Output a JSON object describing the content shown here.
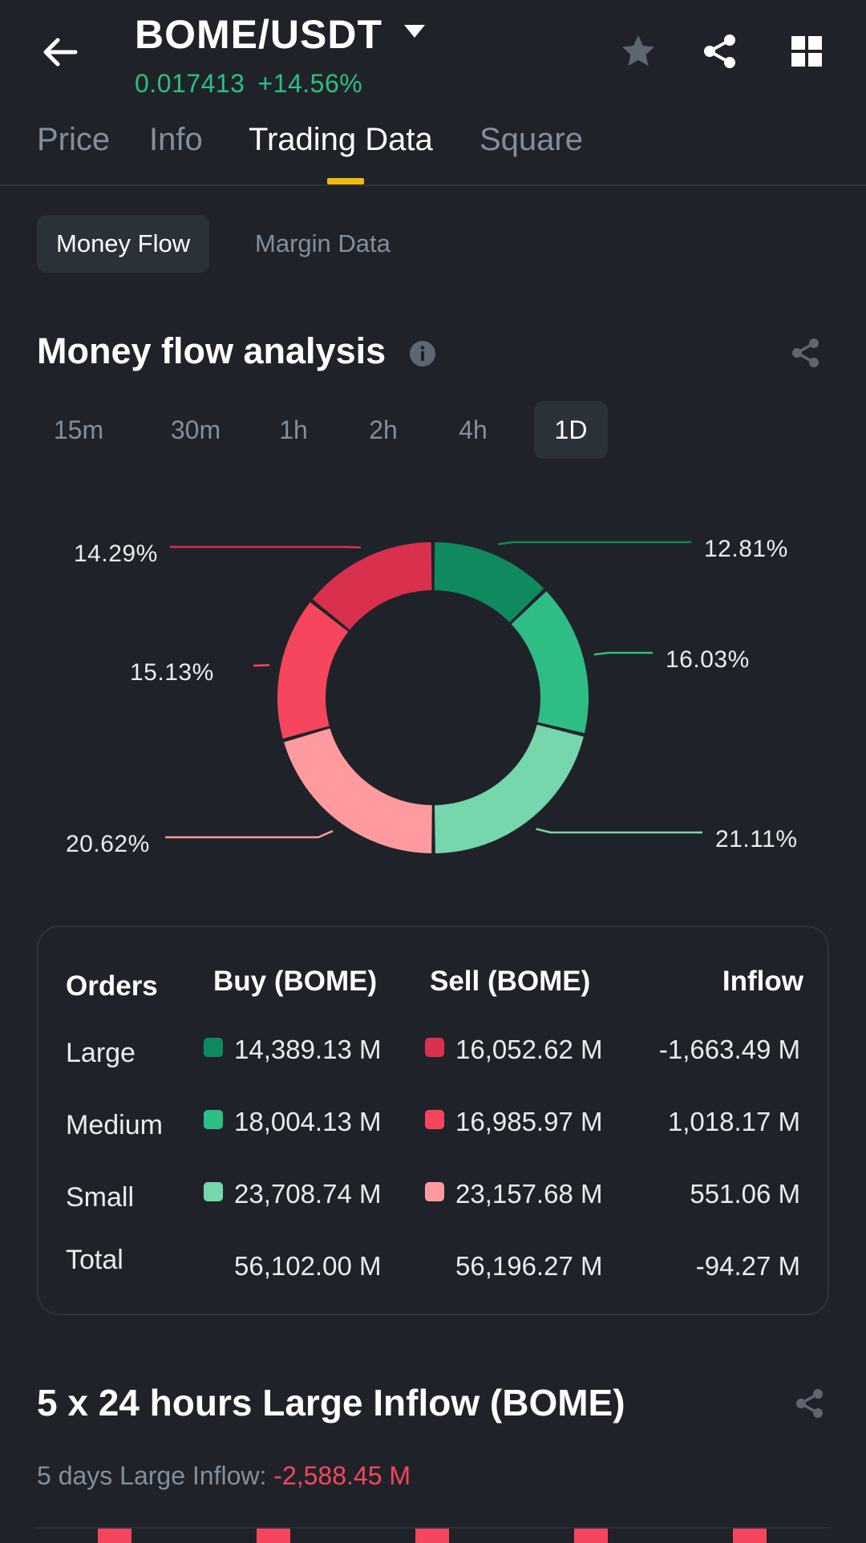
{
  "header": {
    "pair": "BOME/USDT",
    "price": "0.017413",
    "change": "+14.56%"
  },
  "tabs": [
    {
      "label": "Price"
    },
    {
      "label": "Info"
    },
    {
      "label": "Trading Data"
    },
    {
      "label": "Square"
    }
  ],
  "subtabs": [
    {
      "label": "Money Flow"
    },
    {
      "label": "Margin Data"
    }
  ],
  "money_flow": {
    "title": "Money flow analysis",
    "periods": [
      "15m",
      "30m",
      "1h",
      "2h",
      "4h",
      "1D"
    ],
    "selected_period": "1D"
  },
  "chart_data": {
    "type": "pie",
    "donut": true,
    "slices": [
      {
        "label": "Large Buy",
        "value": 12.81,
        "display": "12.81%",
        "color": "#0f8a5f"
      },
      {
        "label": "Medium Buy",
        "value": 16.03,
        "display": "16.03%",
        "color": "#2ebd85"
      },
      {
        "label": "Small Buy",
        "value": 21.11,
        "display": "21.11%",
        "color": "#76d6ac"
      },
      {
        "label": "Small Sell",
        "value": 20.62,
        "display": "20.62%",
        "color": "#ff9b9f"
      },
      {
        "label": "Medium Sell",
        "value": 15.13,
        "display": "15.13%",
        "color": "#f6465d"
      },
      {
        "label": "Large Sell",
        "value": 14.29,
        "display": "14.29%",
        "color": "#d9304e"
      }
    ]
  },
  "orders_table": {
    "headers": {
      "orders": "Orders",
      "buy": "Buy (BOME)",
      "sell": "Sell (BOME)",
      "inflow": "Inflow"
    },
    "rows": [
      {
        "label": "Large",
        "buy": "14,389.13 M",
        "sell": "16,052.62 M",
        "inflow": "-1,663.49 M",
        "buy_color": "#0f8a5f",
        "sell_color": "#d9304e"
      },
      {
        "label": "Medium",
        "buy": "18,004.13 M",
        "sell": "16,985.97 M",
        "inflow": "1,018.17 M",
        "buy_color": "#2ebd85",
        "sell_color": "#f6465d"
      },
      {
        "label": "Small",
        "buy": "23,708.74 M",
        "sell": "23,157.68 M",
        "inflow": "551.06 M",
        "buy_color": "#76d6ac",
        "sell_color": "#ff9b9f"
      },
      {
        "label": "Total",
        "buy": "56,102.00 M",
        "sell": "56,196.27 M",
        "inflow": "-94.27 M"
      }
    ]
  },
  "large_inflow": {
    "title": "5 x 24 hours Large Inflow (BOME)",
    "days_label": "5 days Large Inflow:",
    "days_value": "-2,588.45 M"
  },
  "icons": {
    "back": "arrow-left-icon",
    "dropdown": "caret-down-icon",
    "favorite": "star-icon",
    "share": "share-icon",
    "grid": "grid-icon",
    "info": "info-icon"
  }
}
